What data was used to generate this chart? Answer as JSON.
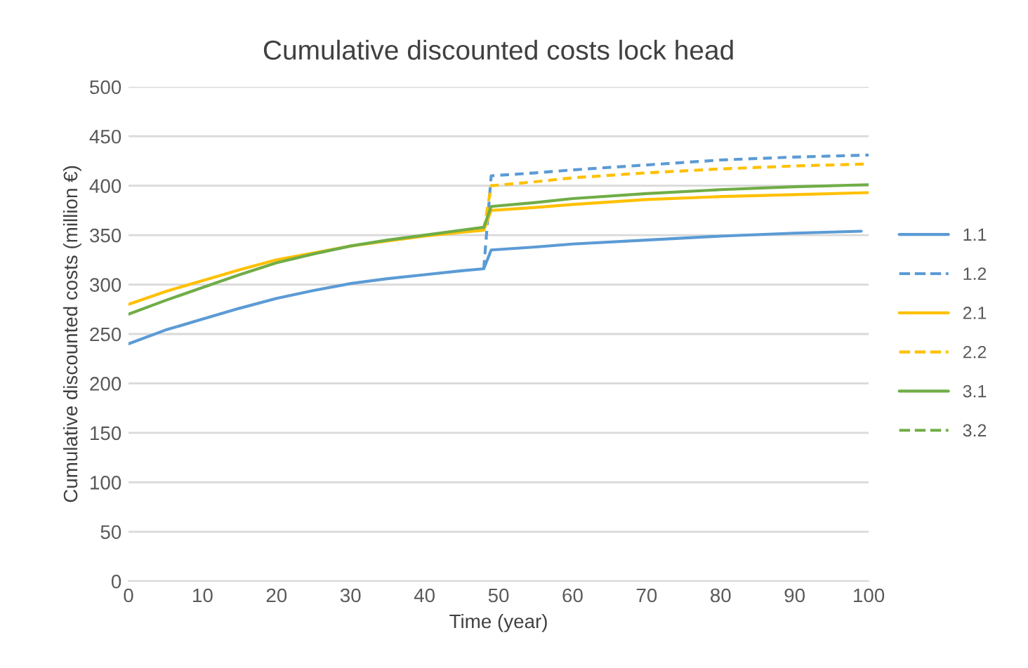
{
  "chart_data": {
    "type": "line",
    "title": "Cumulative discounted costs lock head",
    "xlabel": "Time (year)",
    "ylabel": "Cumulative discounted costs (million €)",
    "xlim": [
      0,
      100
    ],
    "xticks": [
      0,
      10,
      20,
      30,
      40,
      50,
      60,
      70,
      80,
      90,
      100
    ],
    "ylim": [
      0,
      500
    ],
    "yticks": [
      0,
      50,
      100,
      150,
      200,
      250,
      300,
      350,
      400,
      450,
      500
    ],
    "grid": "y",
    "legend": "right",
    "marker": "none",
    "series": [
      {
        "name": "1.1",
        "color": "#5b9bd5",
        "line_style": "solid",
        "x": [
          0,
          5,
          10,
          15,
          20,
          25,
          30,
          35,
          40,
          45,
          48,
          49,
          55,
          60,
          70,
          80,
          90,
          99
        ],
        "values": [
          240,
          254,
          265,
          276,
          286,
          294,
          301,
          306,
          310,
          314,
          316,
          335,
          338,
          341,
          345,
          349,
          352,
          354
        ]
      },
      {
        "name": "1.2",
        "color": "#5b9bd5",
        "line_style": "dashed",
        "x": [
          48,
          49,
          55,
          60,
          70,
          80,
          90,
          100
        ],
        "values": [
          316,
          410,
          413,
          416,
          421,
          426,
          429,
          431
        ]
      },
      {
        "name": "2.1",
        "color": "#ffc000",
        "line_style": "solid",
        "x": [
          0,
          5,
          10,
          15,
          20,
          25,
          30,
          35,
          40,
          45,
          48,
          49,
          55,
          60,
          70,
          80,
          90,
          100
        ],
        "values": [
          280,
          293,
          304,
          315,
          325,
          332,
          339,
          344,
          349,
          353,
          355,
          375,
          378,
          381,
          386,
          389,
          391,
          393
        ]
      },
      {
        "name": "2.2",
        "color": "#ffc000",
        "line_style": "dashed",
        "x": [
          48,
          49,
          55,
          60,
          70,
          80,
          90,
          100
        ],
        "values": [
          355,
          400,
          404,
          408,
          413,
          417,
          420,
          422
        ]
      },
      {
        "name": "3.1",
        "color": "#70ad47",
        "line_style": "solid",
        "x": [
          0,
          5,
          10,
          15,
          20,
          25,
          30,
          35,
          40,
          45,
          48,
          49,
          55,
          60,
          70,
          80,
          90,
          100
        ],
        "values": [
          270,
          284,
          297,
          310,
          322,
          331,
          339,
          345,
          350,
          355,
          358,
          379,
          383,
          387,
          392,
          396,
          399,
          401
        ]
      },
      {
        "name": "3.2",
        "color": "#70ad47",
        "line_style": "dashed"
      }
    ]
  }
}
